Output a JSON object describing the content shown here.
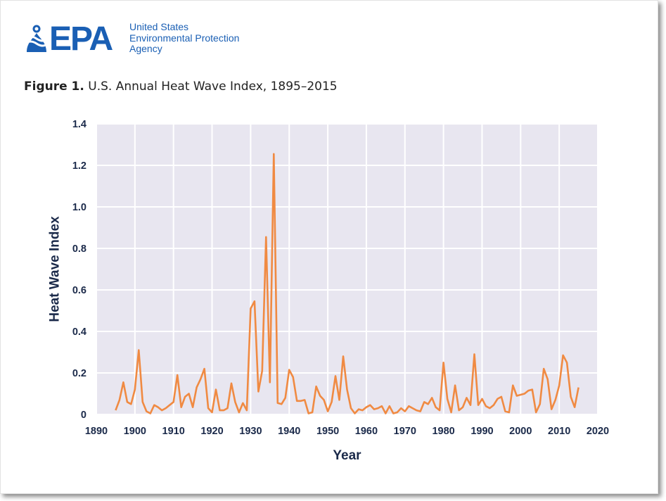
{
  "header": {
    "logo_text": "EPA",
    "agency_lines": [
      "United States",
      "Environmental Protection",
      "Agency"
    ]
  },
  "figure": {
    "label": "Figure 1.",
    "title": "U.S. Annual Heat Wave Index, 1895–2015"
  },
  "colors": {
    "brand_blue": "#1a5fb4",
    "line": "#f08a42",
    "plot_bg": "#e8e6f0",
    "grid": "#ffffff",
    "axis_text": "#1b2a4a"
  },
  "chart_data": {
    "type": "line",
    "xlabel": "Year",
    "ylabel": "Heat Wave Index",
    "xlim": [
      1890,
      2020
    ],
    "ylim": [
      0,
      1.4
    ],
    "x_ticks": [
      1890,
      1900,
      1910,
      1920,
      1930,
      1940,
      1950,
      1960,
      1970,
      1980,
      1990,
      2000,
      2010,
      2020
    ],
    "y_ticks": [
      0,
      0.2,
      0.4,
      0.6,
      0.8,
      1.0,
      1.2,
      1.4
    ],
    "y_tick_labels": [
      "0",
      "0.2",
      "0.4",
      "0.6",
      "0.8",
      "1.0",
      "1.2",
      "1.4"
    ],
    "grid": true,
    "series": [
      {
        "x": [
          1895,
          1896,
          1897,
          1898,
          1899,
          1900,
          1901,
          1902,
          1903,
          1904,
          1905,
          1906,
          1907,
          1908,
          1909,
          1910,
          1911,
          1912,
          1913,
          1914,
          1915,
          1916,
          1917,
          1918,
          1919,
          1920,
          1921,
          1922,
          1923,
          1924,
          1925,
          1926,
          1927,
          1928,
          1929,
          1930,
          1931,
          1932,
          1933,
          1934,
          1935,
          1936,
          1937,
          1938,
          1939,
          1940,
          1941,
          1942,
          1943,
          1944,
          1945,
          1946,
          1947,
          1948,
          1949,
          1950,
          1951,
          1952,
          1953,
          1954,
          1955,
          1956,
          1957,
          1958,
          1959,
          1960,
          1961,
          1962,
          1963,
          1964,
          1965,
          1966,
          1967,
          1968,
          1969,
          1970,
          1971,
          1972,
          1973,
          1974,
          1975,
          1976,
          1977,
          1978,
          1979,
          1980,
          1981,
          1982,
          1983,
          1984,
          1985,
          1986,
          1987,
          1988,
          1989,
          1990,
          1991,
          1992,
          1993,
          1994,
          1995,
          1996,
          1997,
          1998,
          1999,
          2000,
          2001,
          2002,
          2003,
          2004,
          2005,
          2006,
          2007,
          2008,
          2009,
          2010,
          2011,
          2012,
          2013,
          2014,
          2015
        ],
        "values": [
          0.02,
          0.07,
          0.155,
          0.06,
          0.05,
          0.12,
          0.31,
          0.06,
          0.015,
          0.005,
          0.045,
          0.035,
          0.02,
          0.03,
          0.045,
          0.06,
          0.19,
          0.035,
          0.085,
          0.1,
          0.035,
          0.13,
          0.17,
          0.22,
          0.03,
          0.01,
          0.12,
          0.02,
          0.02,
          0.03,
          0.15,
          0.06,
          0.01,
          0.055,
          0.02,
          0.51,
          0.545,
          0.11,
          0.21,
          0.855,
          0.155,
          1.255,
          0.055,
          0.05,
          0.08,
          0.215,
          0.18,
          0.065,
          0.065,
          0.07,
          0.005,
          0.01,
          0.135,
          0.09,
          0.07,
          0.015,
          0.06,
          0.185,
          0.07,
          0.28,
          0.12,
          0.03,
          0.005,
          0.025,
          0.02,
          0.035,
          0.045,
          0.025,
          0.03,
          0.04,
          0.005,
          0.04,
          0.005,
          0.01,
          0.03,
          0.015,
          0.04,
          0.03,
          0.02,
          0.015,
          0.06,
          0.05,
          0.08,
          0.035,
          0.02,
          0.25,
          0.075,
          0.01,
          0.14,
          0.02,
          0.035,
          0.08,
          0.045,
          0.29,
          0.045,
          0.075,
          0.04,
          0.03,
          0.045,
          0.075,
          0.085,
          0.015,
          0.01,
          0.14,
          0.09,
          0.095,
          0.1,
          0.115,
          0.12,
          0.01,
          0.05,
          0.22,
          0.17,
          0.025,
          0.07,
          0.14,
          0.285,
          0.25,
          0.085,
          0.035,
          0.13
        ]
      }
    ]
  }
}
